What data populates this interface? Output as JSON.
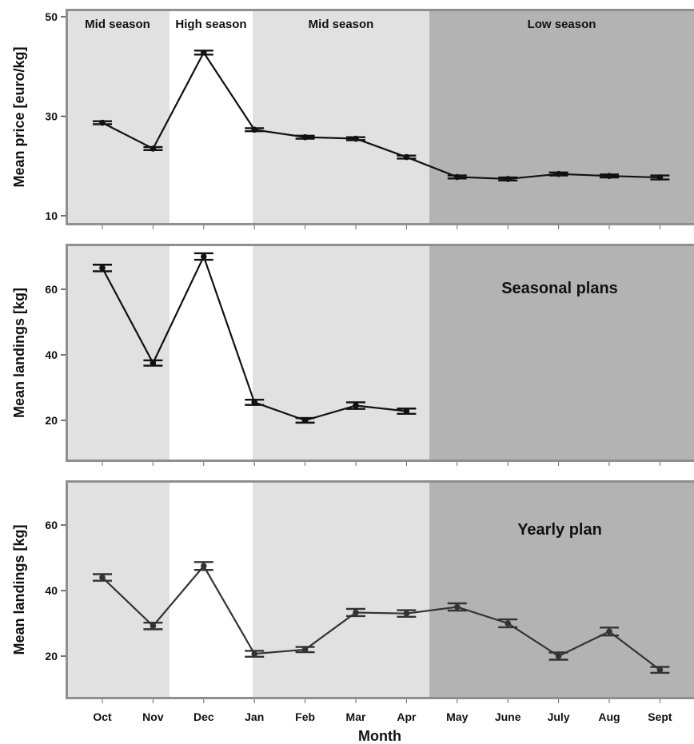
{
  "chart_data": [
    {
      "type": "line",
      "panel_title": "",
      "ylabel": "Mean price [euro/kg]",
      "xlabel": "",
      "ylim": [
        8,
        52
      ],
      "yticks": [
        10,
        30,
        50
      ],
      "categories": [
        "Oct",
        "Nov",
        "Dec",
        "Jan",
        "Feb",
        "Mar",
        "Apr",
        "May",
        "June",
        "July",
        "Aug",
        "Sept"
      ],
      "series": [
        {
          "values": [
            28.7,
            23.5,
            42.8,
            27.3,
            25.8,
            25.5,
            21.8,
            17.8,
            17.4,
            18.4,
            18.0,
            17.7
          ],
          "errors": [
            0.3,
            0.3,
            0.4,
            0.3,
            0.3,
            0.3,
            0.3,
            0.3,
            0.3,
            0.3,
            0.3,
            0.4
          ]
        }
      ]
    },
    {
      "type": "line",
      "panel_title": "Seasonal plans",
      "ylabel": "Mean landings [kg]",
      "xlabel": "",
      "ylim": [
        8,
        74
      ],
      "yticks": [
        20,
        40,
        60
      ],
      "categories": [
        "Oct",
        "Nov",
        "Dec",
        "Jan",
        "Feb",
        "Mar",
        "Apr",
        "May",
        "June",
        "July",
        "Aug",
        "Sept"
      ],
      "series": [
        {
          "values": [
            66.5,
            37.5,
            70.0,
            25.5,
            20.0,
            24.5,
            22.8,
            null,
            null,
            null,
            null,
            null
          ],
          "errors": [
            1.0,
            0.8,
            1.0,
            0.8,
            0.7,
            1.0,
            0.8,
            null,
            null,
            null,
            null,
            null
          ]
        }
      ]
    },
    {
      "type": "line",
      "panel_title": "Yearly plan",
      "ylabel": "Mean landings [kg]",
      "xlabel": "Month",
      "ylim": [
        7,
        75
      ],
      "yticks": [
        20,
        40,
        60
      ],
      "categories": [
        "Oct",
        "Nov",
        "Dec",
        "Jan",
        "Feb",
        "Mar",
        "Apr",
        "May",
        "June",
        "July",
        "Aug",
        "Sept"
      ],
      "series": [
        {
          "values": [
            44.0,
            29.2,
            47.5,
            20.7,
            22.0,
            33.3,
            33.0,
            35.0,
            30.0,
            20.0,
            27.5,
            15.8
          ],
          "errors": [
            1.0,
            1.0,
            1.2,
            0.9,
            0.8,
            1.1,
            1.0,
            1.1,
            1.2,
            1.1,
            1.2,
            0.9
          ]
        }
      ]
    }
  ],
  "seasons": [
    {
      "label": "Mid season",
      "from": 0,
      "to": 1,
      "color": "#e1e1e1"
    },
    {
      "label": "High season",
      "from": 2,
      "to": 2,
      "color": "#ffffff"
    },
    {
      "label": "Mid season",
      "from": 3,
      "to": 6,
      "color": "#e1e1e1"
    },
    {
      "label": "Low season",
      "from": 7,
      "to": 11,
      "color": "#b3b3b3"
    }
  ],
  "colors": {
    "frame": "#8f8f8f",
    "line": "#111111",
    "line_bottom": "#333333"
  }
}
